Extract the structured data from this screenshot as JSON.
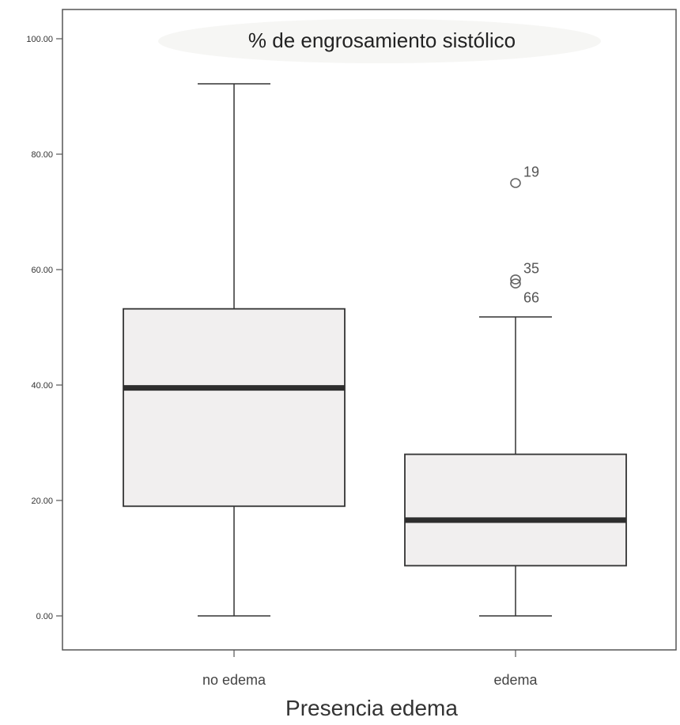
{
  "chart_data": {
    "type": "boxplot",
    "title": "% de engrosamiento sistólico",
    "xlabel": "Presencia edema",
    "ylabel": "",
    "ylim": [
      0,
      100
    ],
    "y_ticks": [
      "0.00",
      "20.00",
      "40.00",
      "60.00",
      "80.00",
      "100.00"
    ],
    "categories": [
      "no edema",
      "edema"
    ],
    "series": [
      {
        "category": "no edema",
        "min": 0,
        "q1": 19,
        "median": 39.5,
        "q3": 53.2,
        "max": 92.2,
        "outliers": []
      },
      {
        "category": "edema",
        "min": 0,
        "q1": 8.7,
        "median": 16.6,
        "q3": 28,
        "max": 51.8,
        "outliers": [
          {
            "value": 75,
            "label": "19"
          },
          {
            "value": 58.3,
            "label": "35"
          },
          {
            "value": 57.6,
            "label": "66"
          }
        ]
      }
    ],
    "grid": false,
    "legend": "none",
    "box_fill": "#f1efef",
    "line_color": "#333333",
    "median_color": "#2e2e2e"
  }
}
